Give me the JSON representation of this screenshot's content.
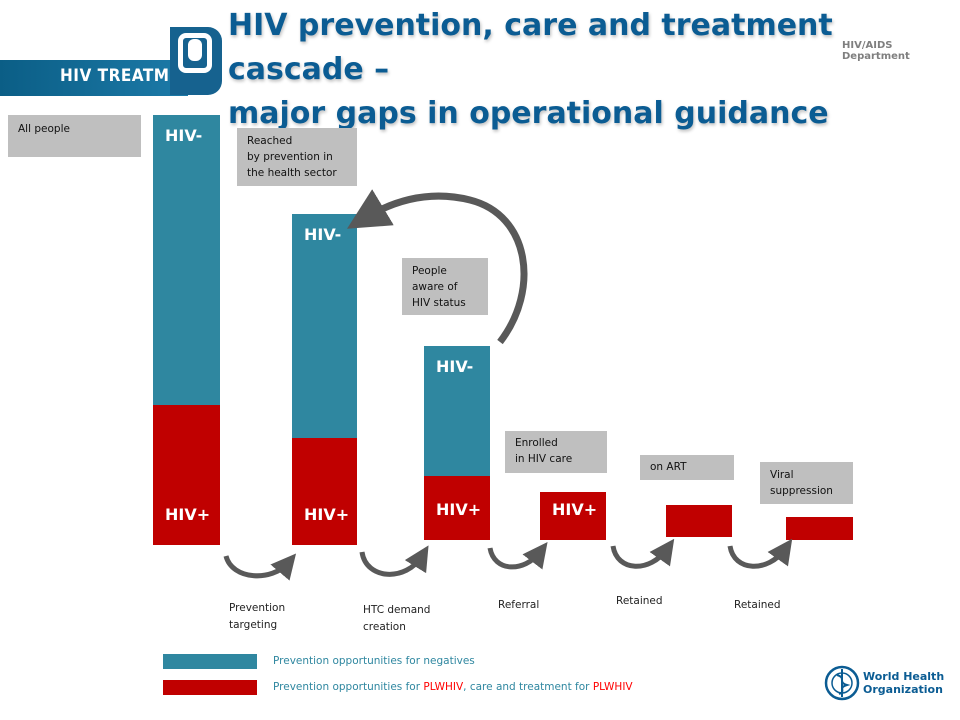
{
  "header": {
    "logo_text": "HIV TREATMENT",
    "title_line1": "HIV prevention, care and treatment cascade –",
    "title_line2": "major gaps in operational guidance",
    "department": "HIV/AIDS Department"
  },
  "notes": {
    "all_people": "All people",
    "reached_l1": "Reached",
    "reached_l2": "by prevention in",
    "reached_l3": "the health sector",
    "aware_l1": "People",
    "aware_l2": "aware of",
    "aware_l3": "HIV status",
    "enrolled_l1": "Enrolled",
    "enrolled_l2": "in  HIV care",
    "on_art": "on ART",
    "viral_l1": "Viral",
    "viral_l2": "suppression"
  },
  "steps": {
    "prevention_l1": "Prevention",
    "prevention_l2": "targeting",
    "htc_l1": "HTC demand",
    "htc_l2": "creation",
    "referral": "Referral",
    "retained_1": "Retained",
    "retained_2": "Retained"
  },
  "legend": {
    "negatives": "Prevention opportunities for negatives",
    "plwhiv_part1": "Prevention opportunities for ",
    "plwhiv_hl1": "PLWHIV",
    "plwhiv_part2": ", care and treatment for ",
    "plwhiv_hl2": "PLWHIV"
  },
  "who": {
    "line1": "World Health",
    "line2": "Organization"
  },
  "colors": {
    "negative": "#2f87a0",
    "positive": "#c00000",
    "note_bg": "#bfbfbf",
    "title": "#0b5c93",
    "arrow": "#595959",
    "highlight": "#ff0000"
  },
  "chart_data": {
    "type": "bar",
    "stacked": true,
    "categories": [
      "All people",
      "Reached by prevention in the health sector",
      "People aware of HIV status",
      "Enrolled in HIV care",
      "on ART",
      "Viral suppression"
    ],
    "series": [
      {
        "name": "HIV-",
        "values": [
          290,
          224,
          130,
          0,
          0,
          0
        ]
      },
      {
        "name": "HIV+",
        "values": [
          140,
          107,
          64,
          48,
          32,
          23
        ]
      }
    ],
    "segment_labels": [
      [
        "HIV-",
        "HIV+"
      ],
      [
        "HIV-",
        "HIV+"
      ],
      [
        "HIV-",
        "HIV+"
      ],
      [
        "",
        "HIV+"
      ],
      [
        "",
        ""
      ],
      [
        "",
        ""
      ]
    ],
    "title": "",
    "xlabel": "",
    "ylabel": ""
  }
}
